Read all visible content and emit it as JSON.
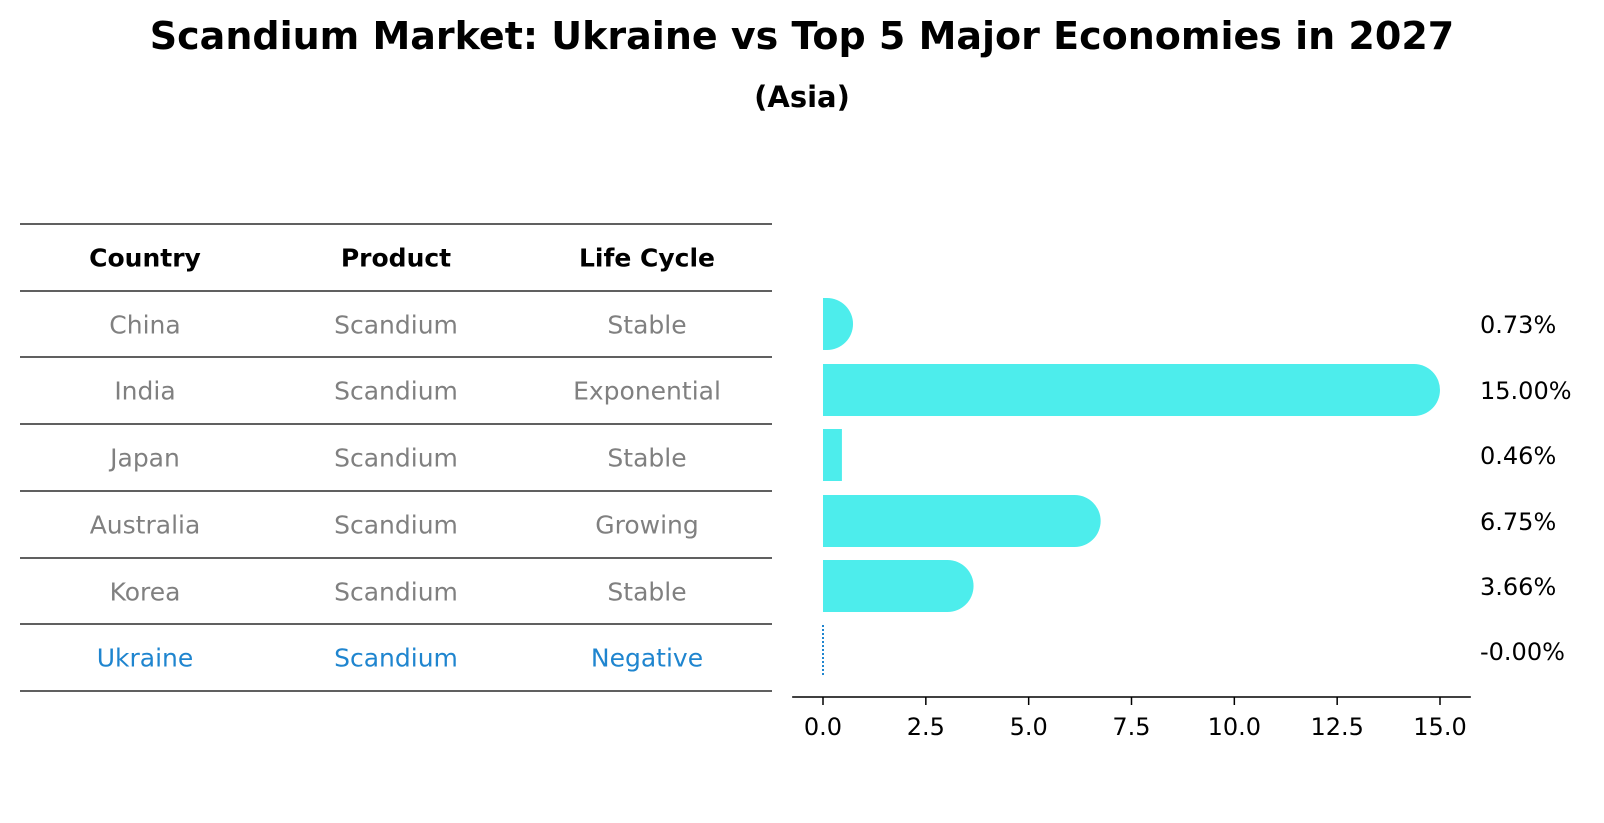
{
  "title": "Scandium Market: Ukraine vs Top 5 Major Economies in 2027",
  "subtitle": "(Asia)",
  "table": {
    "headers": [
      "Country",
      "Product",
      "Life Cycle"
    ],
    "rows": [
      {
        "country": "China",
        "product": "Scandium",
        "life_cycle": "Stable",
        "highlight": false
      },
      {
        "country": "India",
        "product": "Scandium",
        "life_cycle": "Exponential",
        "highlight": false
      },
      {
        "country": "Japan",
        "product": "Scandium",
        "life_cycle": "Stable",
        "highlight": false
      },
      {
        "country": "Australia",
        "product": "Scandium",
        "life_cycle": "Growing",
        "highlight": false
      },
      {
        "country": "Korea",
        "product": "Scandium",
        "life_cycle": "Stable",
        "highlight": false
      },
      {
        "country": "Ukraine",
        "product": "Scandium",
        "life_cycle": "Negative",
        "highlight": true
      }
    ]
  },
  "colors": {
    "bar": "#4DEDEC",
    "highlight": "#1F85CF",
    "muted_text": "#808080",
    "line": "#000000"
  },
  "chart_data": {
    "type": "bar",
    "orientation": "horizontal",
    "categories": [
      "China",
      "India",
      "Japan",
      "Australia",
      "Korea",
      "Ukraine"
    ],
    "values": [
      0.73,
      15.0,
      0.46,
      6.75,
      3.66,
      -0.0
    ],
    "value_labels": [
      "0.73%",
      "15.00%",
      "0.46%",
      "6.75%",
      "3.66%",
      "-0.00%"
    ],
    "xlim": [
      -0.75,
      15.75
    ],
    "xticks": [
      0.0,
      2.5,
      5.0,
      7.5,
      10.0,
      12.5,
      15.0
    ],
    "xtick_labels": [
      "0.0",
      "2.5",
      "5.0",
      "7.5",
      "10.0",
      "12.5",
      "15.0"
    ],
    "xlabel": "",
    "ylabel": "",
    "grid": false,
    "legend": false
  }
}
